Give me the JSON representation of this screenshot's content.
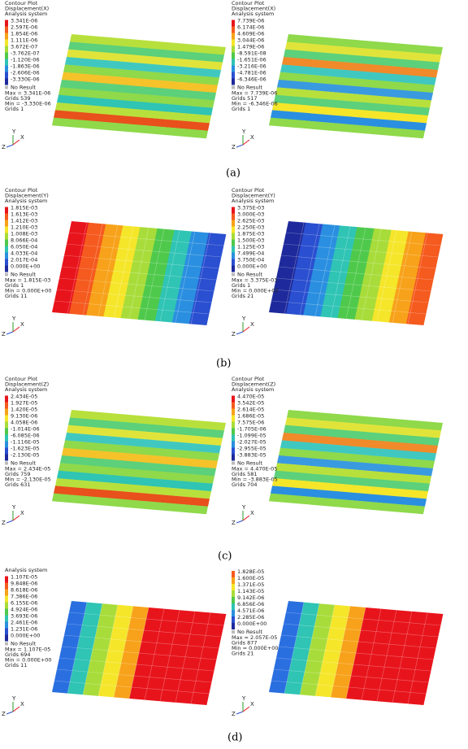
{
  "panels": [
    {
      "caption": "(a)",
      "plots": [
        {
          "header": [
            "Contour Plot",
            "Displacement(X)",
            "Analysis system"
          ],
          "legend": [
            "3.341E-06",
            "2.597E-06",
            "1.854E-06",
            "1.111E-06",
            "3.672E-07",
            "-3.762E-07",
            "-1.120E-06",
            "-1.863E-06",
            "-2.606E-06",
            "-3.330E-06"
          ],
          "no_result": "No Result",
          "stats": [
            "Max = 3.341E-06",
            "Grids 539",
            "Min = -3.330E-06",
            "Grids 1"
          ],
          "triad": [
            "Y",
            "Z",
            "X"
          ]
        },
        {
          "header": [
            "Contour Plot",
            "Displacement(X)",
            "Analysis system"
          ],
          "legend": [
            "7.739E-06",
            "6.174E-06",
            "4.609E-06",
            "3.044E-06",
            "1.479E-06",
            "-8.591E-08",
            "-1.651E-06",
            "-3.216E-06",
            "-4.781E-06",
            "-6.346E-06"
          ],
          "no_result": "No Result",
          "stats": [
            "Max = 7.739E-06",
            "Grids 517",
            "Min = -6.346E-06",
            "Grids 1"
          ],
          "triad": [
            "Y",
            "Z",
            "X"
          ]
        }
      ]
    },
    {
      "caption": "(b)",
      "plots": [
        {
          "header": [
            "Contour Plot",
            "Displacement(Y)",
            "Analysis system"
          ],
          "legend": [
            "1.815E-03",
            "1.613E-03",
            "1.412E-03",
            "1.210E-03",
            "1.008E-03",
            "8.066E-04",
            "6.050E-04",
            "4.033E-04",
            "2.017E-04",
            "0.000E+00"
          ],
          "no_result": "No Result",
          "stats": [
            "Max = 1.815E-03",
            "Grids 1",
            "Min = 0.000E+00",
            "Grids 11"
          ],
          "triad": [
            "Y",
            "Z",
            "X"
          ]
        },
        {
          "header": [
            "Contour Plot",
            "Displacement(Y)",
            "Analysis system"
          ],
          "legend": [
            "3.375E-03",
            "3.000E-03",
            "2.625E-03",
            "2.250E-03",
            "1.875E-03",
            "1.500E-03",
            "1.125E-03",
            "7.499E-04",
            "3.750E-04",
            "0.000E+00"
          ],
          "no_result": "No Result",
          "stats": [
            "Max = 3.375E-03",
            "Grids 1",
            "Min = 0.000E+00",
            "Grids 21"
          ],
          "triad": [
            "Y",
            "Z",
            "X"
          ]
        }
      ]
    },
    {
      "caption": "(c)",
      "plots": [
        {
          "header": [
            "Contour Plot",
            "Displacement(Z)",
            "Analysis system"
          ],
          "legend": [
            "2.434E-05",
            "1.927E-05",
            "1.420E-05",
            "9.130E-06",
            "4.058E-06",
            "-1.014E-06",
            "-6.085E-06",
            "-1.116E-05",
            "-1.623E-05",
            "-2.130E-05"
          ],
          "no_result": "No Result",
          "stats": [
            "Max = 2.434E-05",
            "Grids 759",
            "Min = -2.130E-05",
            "Grids 631"
          ],
          "triad": [
            "Y",
            "Z",
            "X"
          ]
        },
        {
          "header": [
            "Contour Plot",
            "Displacement(Z)",
            "Analysis system"
          ],
          "legend": [
            "4.470E-05",
            "3.542E-05",
            "2.614E-05",
            "1.686E-05",
            "7.575E-06",
            "-1.705E-06",
            "-1.099E-05",
            "-2.027E-05",
            "-2.955E-05",
            "-3.883E-05"
          ],
          "no_result": "No Result",
          "stats": [
            "Max = 4.470E-05",
            "Grids 581",
            "Min = -3.883E-05",
            "Grids 704"
          ],
          "triad": [
            "Y",
            "Z",
            "X"
          ]
        }
      ]
    },
    {
      "caption": "(d)",
      "plots": [
        {
          "header": [
            "Analysis system"
          ],
          "legend": [
            "1.107E-05",
            "9.848E-06",
            "8.618E-06",
            "7.386E-06",
            "6.155E-06",
            "4.924E-06",
            "3.693E-06",
            "2.461E-06",
            "1.231E-06",
            "0.000E+00"
          ],
          "no_result": "No Result",
          "stats": [
            "Max = 1.107E-05",
            "Grids 694",
            "Min = 0.000E+00",
            "Grids 11"
          ],
          "triad": [
            "Y",
            "Z",
            "X"
          ]
        },
        {
          "header": [],
          "legend": [
            "1.828E-05",
            "1.600E-05",
            "1.371E-05",
            "1.143E-05",
            "9.142E-06",
            "6.856E-06",
            "4.571E-06",
            "2.285E-06",
            "0.000E+00"
          ],
          "no_result": "No Result",
          "stats": [
            "Max = 2.057E-05",
            "Grids 877",
            "Min = 0.000E+00",
            "Grids 21"
          ],
          "triad": [
            "Y",
            "Z",
            "X"
          ]
        }
      ]
    }
  ]
}
